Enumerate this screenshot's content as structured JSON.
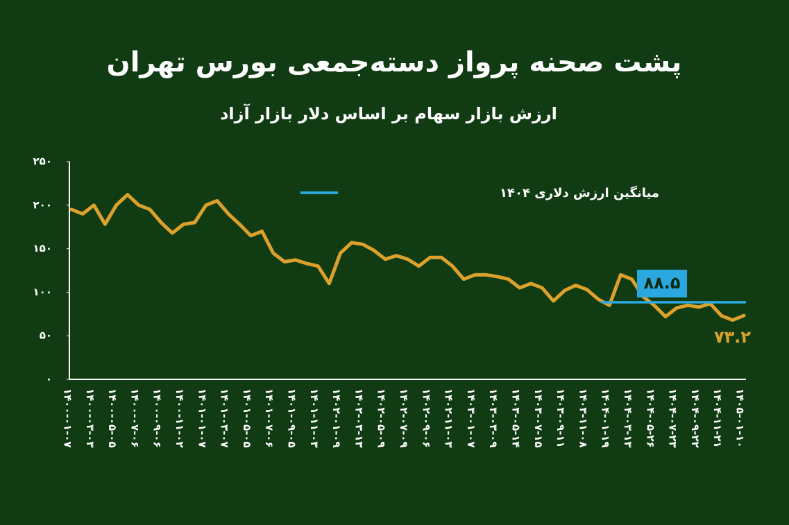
{
  "chart_data": {
    "type": "line",
    "title": "پشت صحنه پرواز دسته‌جمعی بورس تهران",
    "subtitle": "ارزش بازار سهام بر اساس دلار بازار آزاد",
    "categories": [
      "۱۴۰۰-۰۱-۰۷",
      null,
      "۱۴۰۰-۰۳-۰۳",
      null,
      "۱۴۰۰-۰۵-۰۵",
      null,
      "۱۴۰۰-۰۷-۰۶",
      null,
      "۱۴۰۰-۰۹-۰۶",
      null,
      "۱۴۰۰-۱۱-۰۲",
      null,
      "۱۴۰۱-۰۱-۰۷",
      null,
      "۱۴۰۱-۰۳-۰۷",
      null,
      "۱۴۰۱-۰۵-۰۵",
      null,
      "۱۴۰۱-۰۷-۰۶",
      null,
      "۱۴۰۱-۰۹-۰۵",
      null,
      "۱۴۰۱-۱۱-۰۳",
      null,
      "۱۴۰۲-۰۱-۰۹",
      null,
      "۱۴۰۲-۰۳-۱۳",
      null,
      "۱۴۰۲-۰۵-۰۹",
      null,
      "۱۴۰۲-۰۷-۰۹",
      null,
      "۱۴۰۲-۰۹-۰۶",
      null,
      "۱۴۰۲-۱۱-۰۳",
      null,
      "۱۴۰۳-۰۱-۰۷",
      null,
      "۱۴۰۳-۰۳-۰۹",
      null,
      "۱۴۰۳-۰۵-۱۴",
      null,
      "۱۴۰۳-۰۷-۱۵",
      null,
      "۱۴۰۳-۰۹-۱۱",
      null,
      "۱۴۰۳-۱۱-۰۸",
      null,
      "۱۴۰۴-۰۱-۱۹",
      null,
      "۱۴۰۴-۰۳-۱۳",
      null,
      "۱۴۰۴-۰۵-۲۶",
      null,
      "۱۴۰۴-۰۷-۲۳",
      null,
      "۱۴۰۴-۰۹-۲۲",
      null,
      "۱۴۰۴-۱۱-۲۱",
      null,
      "۱۴۰۵-۰۱-۱۰"
    ],
    "values": [
      195,
      190,
      200,
      178,
      200,
      212,
      200,
      195,
      180,
      168,
      178,
      180,
      200,
      205,
      190,
      178,
      165,
      170,
      145,
      135,
      137,
      133,
      130,
      110,
      145,
      157,
      155,
      148,
      138,
      142,
      138,
      130,
      140,
      140,
      130,
      115,
      120,
      120,
      118,
      115,
      105,
      110,
      105,
      90,
      102,
      108,
      103,
      92,
      85,
      120,
      115,
      95,
      85,
      72,
      82,
      85,
      83,
      87,
      73,
      68,
      73.2
    ],
    "color": "#dba12c",
    "end_label": "۷۳.۲",
    "ylim": [
      0,
      250
    ],
    "yticks": [
      {
        "value": 0,
        "label": "۰"
      },
      {
        "value": 50,
        "label": "۵۰"
      },
      {
        "value": 100,
        "label": "۱۰۰"
      },
      {
        "value": 150,
        "label": "۱۵۰"
      },
      {
        "value": 200,
        "label": "۲۰۰"
      },
      {
        "value": 250,
        "label": "۲۵۰"
      }
    ],
    "reference_line": {
      "name": "میانگین ارزش دلاری ۱۴۰۴",
      "value": 88.5,
      "label": "۸۸.۵",
      "color": "#2ba8e0",
      "start_category": "۱۴۰۴-۰۱-۱۹"
    }
  }
}
